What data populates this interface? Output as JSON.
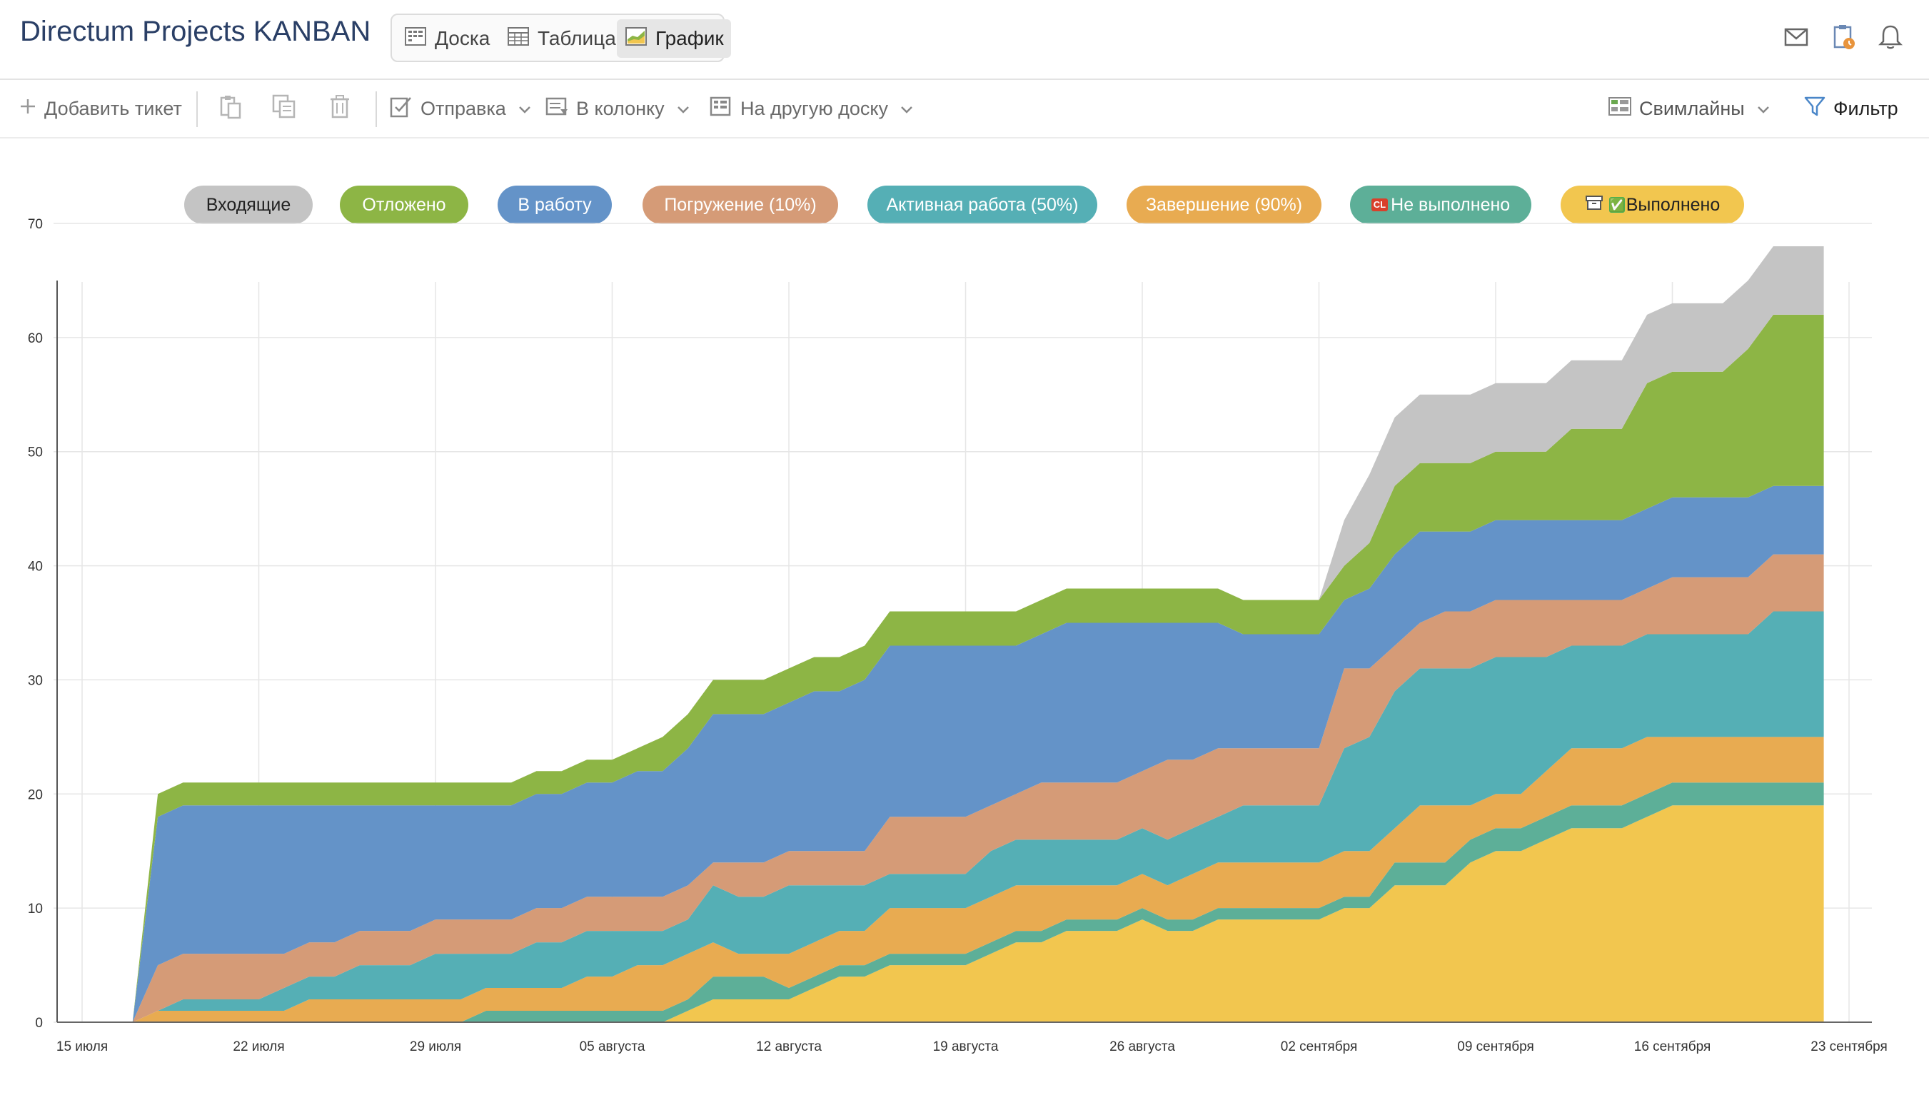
{
  "app": {
    "title": "Directum Projects KANBAN"
  },
  "views": [
    {
      "label": "Доска",
      "icon": "board-icon"
    },
    {
      "label": "Таблица",
      "icon": "table-icon"
    },
    {
      "label": "График",
      "icon": "chart-icon",
      "active": true
    }
  ],
  "header_icons": [
    "mail-icon",
    "clipboard-clock-icon",
    "bell-icon"
  ],
  "toolbar": {
    "add_ticket": "Добавить тикет",
    "send": "Отправка",
    "to_column": "В колонку",
    "to_board": "На другую доску",
    "swimlanes": "Свимлайны",
    "filter": "Фильтр"
  },
  "legend": [
    {
      "label": "Входящие",
      "color": "#c4c4c4",
      "text_color": "#222222"
    },
    {
      "label": "Отложено",
      "color": "#8db545",
      "text_color": "#ffffff"
    },
    {
      "label": "В работу",
      "color": "#6493c8",
      "text_color": "#ffffff"
    },
    {
      "label": "Погружение (10%)",
      "color": "#d59b77",
      "text_color": "#ffffff"
    },
    {
      "label": "Активная работа (50%)",
      "color": "#55afb5",
      "text_color": "#ffffff"
    },
    {
      "label": "Завершение (90%)",
      "color": "#e8ab51",
      "text_color": "#ffffff"
    },
    {
      "label": "Не выполнено",
      "prefix": "CL",
      "color": "#5daf98",
      "text_color": "#ffffff"
    },
    {
      "label": "Выполнено",
      "prefix": "✅",
      "color": "#f2c64f",
      "text_color": "#222222"
    }
  ],
  "chart_data": {
    "type": "area",
    "stacked": true,
    "x_label": "",
    "y_label": "",
    "ylim": [
      0,
      70
    ],
    "y_ticks": [
      0,
      10,
      20,
      30,
      40,
      50,
      60,
      70
    ],
    "x_ticks": [
      "15 июля",
      "22 июля",
      "29 июля",
      "05 августа",
      "12 августа",
      "19 августа",
      "26 августа",
      "02 сентября",
      "09 сентября",
      "16 сентября",
      "23 сентября"
    ],
    "x": [
      "2024-07-17",
      "2024-07-18",
      "2024-07-19",
      "2024-07-20",
      "2024-07-21",
      "2024-07-22",
      "2024-07-23",
      "2024-07-24",
      "2024-07-25",
      "2024-07-26",
      "2024-07-27",
      "2024-07-28",
      "2024-07-29",
      "2024-07-30",
      "2024-07-31",
      "2024-08-01",
      "2024-08-02",
      "2024-08-03",
      "2024-08-04",
      "2024-08-05",
      "2024-08-06",
      "2024-08-07",
      "2024-08-08",
      "2024-08-09",
      "2024-08-10",
      "2024-08-11",
      "2024-08-12",
      "2024-08-13",
      "2024-08-14",
      "2024-08-15",
      "2024-08-16",
      "2024-08-17",
      "2024-08-18",
      "2024-08-19",
      "2024-08-20",
      "2024-08-21",
      "2024-08-22",
      "2024-08-23",
      "2024-08-24",
      "2024-08-25",
      "2024-08-26",
      "2024-08-27",
      "2024-08-28",
      "2024-08-29",
      "2024-08-30",
      "2024-08-31",
      "2024-09-01",
      "2024-09-02",
      "2024-09-03",
      "2024-09-04",
      "2024-09-05",
      "2024-09-06",
      "2024-09-07",
      "2024-09-08",
      "2024-09-09",
      "2024-09-10",
      "2024-09-11",
      "2024-09-12",
      "2024-09-13",
      "2024-09-14",
      "2024-09-15",
      "2024-09-16",
      "2024-09-17",
      "2024-09-18",
      "2024-09-19",
      "2024-09-20",
      "2024-09-21",
      "2024-09-22"
    ],
    "series": [
      {
        "name": "Выполнено",
        "color": "#f2c64f",
        "values": [
          0,
          0,
          0,
          0,
          0,
          0,
          0,
          0,
          0,
          0,
          0,
          0,
          0,
          0,
          0,
          0,
          0,
          0,
          0,
          0,
          0,
          0,
          1,
          2,
          2,
          2,
          2,
          3,
          4,
          4,
          5,
          5,
          5,
          5,
          6,
          7,
          7,
          8,
          8,
          8,
          9,
          8,
          8,
          9,
          9,
          9,
          9,
          9,
          10,
          10,
          12,
          12,
          12,
          14,
          15,
          15,
          16,
          17,
          17,
          17,
          18,
          19,
          19,
          19,
          19,
          19,
          19,
          19
        ]
      },
      {
        "name": "Не выполнено",
        "color": "#5daf98",
        "values": [
          0,
          0,
          0,
          0,
          0,
          0,
          0,
          0,
          0,
          0,
          0,
          0,
          0,
          0,
          1,
          1,
          1,
          1,
          1,
          1,
          1,
          1,
          1,
          2,
          2,
          2,
          1,
          1,
          1,
          1,
          1,
          1,
          1,
          1,
          1,
          1,
          1,
          1,
          1,
          1,
          1,
          1,
          1,
          1,
          1,
          1,
          1,
          1,
          1,
          1,
          2,
          2,
          2,
          2,
          2,
          2,
          2,
          2,
          2,
          2,
          2,
          2,
          2,
          2,
          2,
          2,
          2,
          2
        ]
      },
      {
        "name": "Завершение (90%)",
        "color": "#e8ab51",
        "values": [
          0,
          1,
          1,
          1,
          1,
          1,
          1,
          2,
          2,
          2,
          2,
          2,
          2,
          2,
          2,
          2,
          2,
          2,
          3,
          3,
          4,
          4,
          4,
          3,
          2,
          2,
          3,
          3,
          3,
          3,
          4,
          4,
          4,
          4,
          4,
          4,
          4,
          3,
          3,
          3,
          3,
          3,
          4,
          4,
          4,
          4,
          4,
          4,
          4,
          4,
          3,
          5,
          5,
          3,
          3,
          3,
          4,
          5,
          5,
          5,
          5,
          4,
          4,
          4,
          4,
          4,
          4,
          4
        ]
      },
      {
        "name": "Активная работа (50%)",
        "color": "#55afb5",
        "values": [
          0,
          0,
          1,
          1,
          1,
          1,
          2,
          2,
          2,
          3,
          3,
          3,
          4,
          4,
          3,
          3,
          4,
          4,
          4,
          4,
          3,
          3,
          3,
          5,
          5,
          5,
          6,
          5,
          4,
          4,
          3,
          3,
          3,
          3,
          4,
          4,
          4,
          4,
          4,
          4,
          4,
          4,
          4,
          4,
          5,
          5,
          5,
          5,
          9,
          10,
          12,
          12,
          12,
          12,
          12,
          12,
          10,
          9,
          9,
          9,
          9,
          9,
          9,
          9,
          9,
          11,
          11,
          11
        ]
      },
      {
        "name": "Погружение (10%)",
        "color": "#d59b77",
        "values": [
          0,
          4,
          4,
          4,
          4,
          4,
          3,
          3,
          3,
          3,
          3,
          3,
          3,
          3,
          3,
          3,
          3,
          3,
          3,
          3,
          3,
          3,
          3,
          2,
          3,
          3,
          3,
          3,
          3,
          3,
          5,
          5,
          5,
          5,
          4,
          4,
          5,
          5,
          5,
          5,
          5,
          7,
          6,
          6,
          5,
          5,
          5,
          5,
          7,
          6,
          4,
          4,
          5,
          5,
          5,
          5,
          5,
          4,
          4,
          4,
          4,
          5,
          5,
          5,
          5,
          5,
          5,
          5
        ]
      },
      {
        "name": "В работу",
        "color": "#6493c8",
        "values": [
          0,
          13,
          13,
          13,
          13,
          13,
          13,
          12,
          12,
          11,
          11,
          11,
          10,
          10,
          10,
          10,
          10,
          10,
          10,
          10,
          11,
          11,
          12,
          13,
          13,
          13,
          13,
          14,
          14,
          15,
          15,
          15,
          15,
          15,
          14,
          13,
          13,
          14,
          14,
          14,
          13,
          12,
          12,
          11,
          10,
          10,
          10,
          10,
          6,
          7,
          8,
          8,
          7,
          7,
          7,
          7,
          7,
          7,
          7,
          7,
          7,
          7,
          7,
          7,
          7,
          6,
          6,
          6
        ]
      },
      {
        "name": "Отложено",
        "color": "#8db545",
        "values": [
          0,
          2,
          2,
          2,
          2,
          2,
          2,
          2,
          2,
          2,
          2,
          2,
          2,
          2,
          2,
          2,
          2,
          2,
          2,
          2,
          2,
          3,
          3,
          3,
          3,
          3,
          3,
          3,
          3,
          3,
          3,
          3,
          3,
          3,
          3,
          3,
          3,
          3,
          3,
          3,
          3,
          3,
          3,
          3,
          3,
          3,
          3,
          3,
          3,
          4,
          6,
          6,
          6,
          6,
          6,
          6,
          6,
          8,
          8,
          8,
          11,
          11,
          11,
          11,
          13,
          15,
          15,
          15
        ]
      },
      {
        "name": "Входящие",
        "color": "#c4c4c4",
        "values": [
          0,
          0,
          0,
          0,
          0,
          0,
          0,
          0,
          0,
          0,
          0,
          0,
          0,
          0,
          0,
          0,
          0,
          0,
          0,
          0,
          0,
          0,
          0,
          0,
          0,
          0,
          0,
          0,
          0,
          0,
          0,
          0,
          0,
          0,
          0,
          0,
          0,
          0,
          0,
          0,
          0,
          0,
          0,
          0,
          0,
          0,
          0,
          0,
          4,
          6,
          6,
          6,
          6,
          6,
          6,
          6,
          6,
          6,
          6,
          6,
          6,
          6,
          6,
          6,
          6,
          6,
          6,
          6
        ]
      }
    ]
  }
}
